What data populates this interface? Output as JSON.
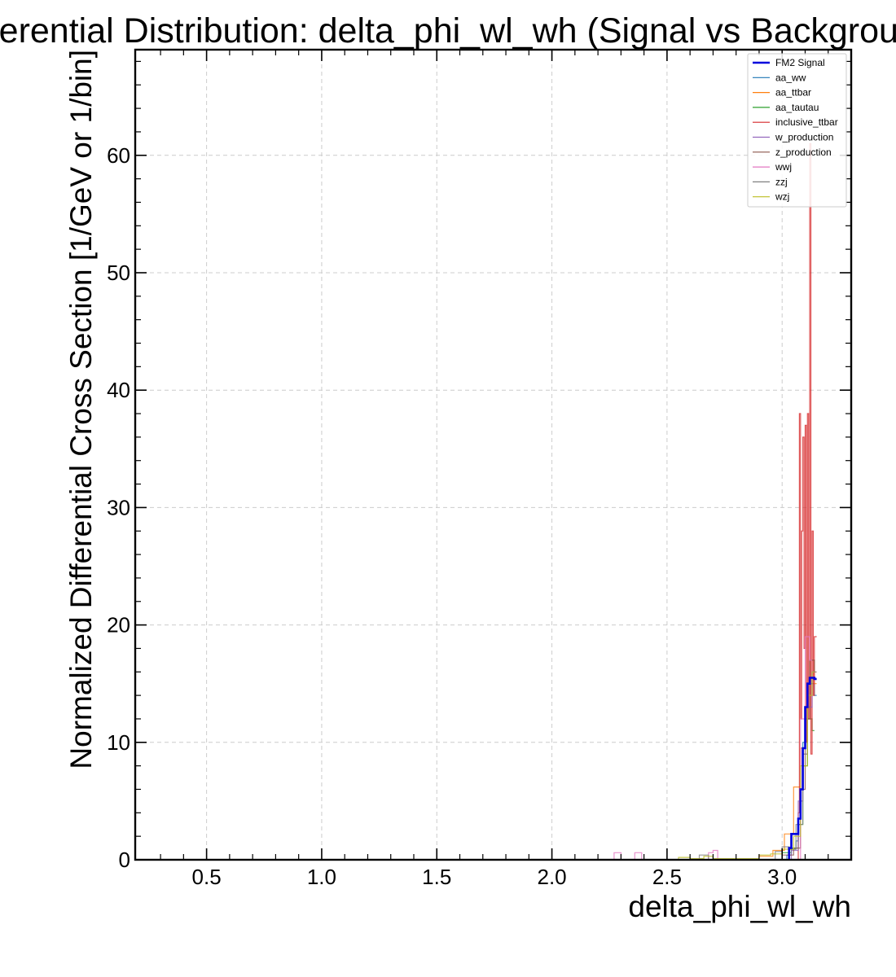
{
  "chart_data": {
    "type": "step",
    "title": "Differential Distribution: delta_phi_wl_wh (Signal vs Background)",
    "xlabel": "delta_phi_wl_wh",
    "ylabel": "Normalized Differential Cross Section [1/GeV or 1/bin]",
    "xlim": [
      0.19,
      3.3
    ],
    "ylim": [
      0,
      69
    ],
    "xticks": [
      "0.5",
      "1.0",
      "1.5",
      "2.0",
      "2.5",
      "3.0"
    ],
    "yticks": [
      "0",
      "10",
      "20",
      "30",
      "40",
      "50",
      "60"
    ],
    "grid": true,
    "legend_position": "top-right",
    "series": [
      {
        "name": "FM2 Signal",
        "color": "#0000dd",
        "width": 2.6,
        "x": [
          3.03,
          3.04,
          3.07,
          3.08,
          3.09,
          3.1,
          3.11,
          3.12,
          3.13,
          3.14
        ],
        "y": [
          1,
          2.2,
          3.5,
          6,
          9.5,
          13,
          15,
          15.5,
          15.5,
          15.4
        ]
      },
      {
        "name": "aa_ww",
        "color": "#1f77b4",
        "width": 1.2,
        "x": [
          3.02,
          3.04,
          3.06,
          3.07,
          3.08,
          3.09,
          3.1,
          3.11,
          3.12,
          3.13,
          3.14
        ],
        "y": [
          0.4,
          0.9,
          1.6,
          3,
          6,
          10,
          13,
          14,
          15,
          15,
          14
        ]
      },
      {
        "name": "aa_ttbar",
        "color": "#ff7f0e",
        "width": 1.2,
        "x": [
          2.9,
          2.96,
          3.01,
          3.05,
          3.08,
          3.1,
          3.12,
          3.14
        ],
        "y": [
          0.3,
          0.8,
          2.2,
          6.2,
          9.5,
          13,
          17,
          15
        ]
      },
      {
        "name": "aa_tautau",
        "color": "#2ca02c",
        "width": 1.2,
        "x": [
          3.0,
          3.04,
          3.07,
          3.09,
          3.11,
          3.13
        ],
        "y": [
          0.6,
          1,
          3,
          8,
          12,
          11
        ]
      },
      {
        "name": "inclusive_ttbar",
        "color": "#d62728",
        "width": 1.2,
        "x": [
          3.07,
          3.075,
          3.08,
          3.085,
          3.09,
          3.095,
          3.1,
          3.105,
          3.11,
          3.115,
          3.12,
          3.125,
          3.13,
          3.135,
          3.14
        ],
        "y": [
          4,
          38,
          12,
          28,
          36,
          18,
          37,
          10,
          38,
          12,
          61,
          9,
          28,
          14,
          19
        ]
      },
      {
        "name": "w_production",
        "color": "#9467bd",
        "width": 1.2,
        "x": [
          3.04,
          3.07,
          3.09,
          3.11,
          3.13
        ],
        "y": [
          0.8,
          5,
          9,
          13,
          16
        ]
      },
      {
        "name": "z_production",
        "color": "#8c564b",
        "width": 1.2,
        "x": [
          3.0,
          3.05,
          3.08,
          3.1,
          3.12,
          3.14
        ],
        "y": [
          0.4,
          1,
          6,
          12,
          17,
          16
        ]
      },
      {
        "name": "wwj",
        "color": "#e377c2",
        "width": 1.2,
        "x": [
          2.27,
          2.3,
          2.36,
          2.39,
          2.68,
          2.7,
          2.72,
          3.08,
          3.1,
          3.12
        ],
        "y": [
          0.6,
          0,
          0.6,
          0,
          0.6,
          0.8,
          0,
          12,
          19,
          17
        ]
      },
      {
        "name": "zzj",
        "color": "#7f7f7f",
        "width": 1.2,
        "x": [
          2.64,
          2.68,
          2.97,
          3.0,
          3.03,
          3.06,
          3.09,
          3.11,
          3.13
        ],
        "y": [
          0.4,
          0,
          0.7,
          1.1,
          0.9,
          3,
          9,
          15,
          16
        ]
      },
      {
        "name": "wzj",
        "color": "#bcbd22",
        "width": 1.2,
        "x": [
          2.55,
          2.6,
          2.66,
          2.7,
          2.9,
          2.95,
          3.0,
          3.05,
          3.08,
          3.11,
          3.13
        ],
        "y": [
          0.2,
          0.1,
          0.3,
          0.1,
          0.4,
          0.5,
          0.9,
          2,
          8,
          14,
          16
        ]
      }
    ]
  }
}
